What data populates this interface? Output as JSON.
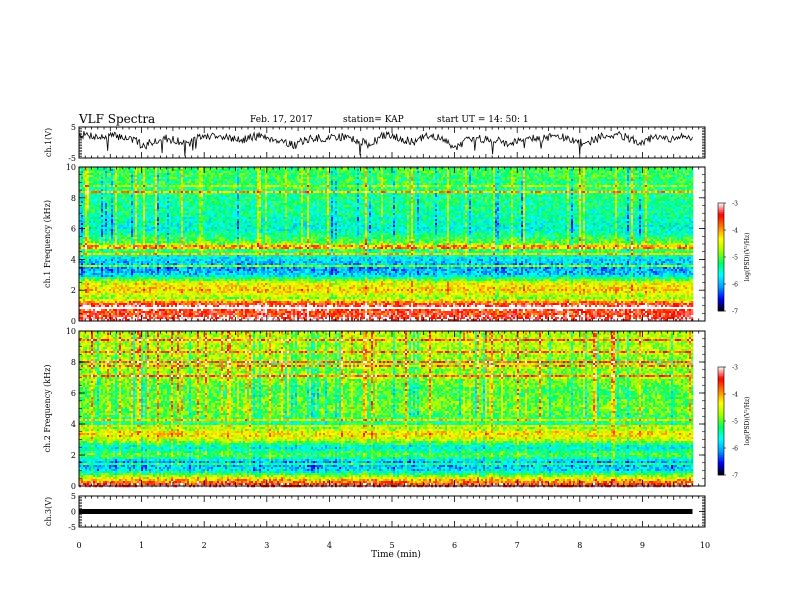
{
  "header": {
    "title": "VLF Spectra",
    "date": "Feb. 17, 2017",
    "station": "station= KAP",
    "start": "start UT = 14: 50: 1"
  },
  "colorbar": {
    "label": "log(PSD)(V²/Hz)",
    "ticks": [
      "-3",
      "-4",
      "-5",
      "-6",
      "-7"
    ],
    "range": [
      -7,
      -3
    ],
    "colors": [
      "#000000",
      "#0000ff",
      "#00a0ff",
      "#00ffff",
      "#00ff60",
      "#a0ff00",
      "#ffff00",
      "#ff8000",
      "#ff0000",
      "#ffffff"
    ]
  },
  "chart_data": [
    {
      "type": "line",
      "panel": "ch1-waveform",
      "ylabel": "ch.1(V)",
      "ylim": [
        -5,
        5
      ],
      "yticks": [
        "5",
        "-5"
      ],
      "xlim": [
        0,
        10
      ],
      "trace_window": [
        0,
        9.8
      ],
      "series": [
        {
          "values": [
            2.5,
            2.4,
            1.6,
            2.2,
            1.8,
            1.0,
            -1.2,
            0.6,
            1.4,
            0.8,
            -0.8,
            1.6,
            2.0,
            2.4,
            1.4,
            0.6,
            1.8,
            2.2,
            1.2,
            0.4,
            -1.0,
            0.8,
            1.5,
            0.9,
            2.0,
            1.6,
            0.6,
            -0.8,
            1.8,
            2.6,
            1.2,
            0.0,
            1.6,
            2.2,
            0.4,
            -1.4,
            0.6,
            1.0,
            1.4,
            0.8,
            -0.6,
            1.2,
            1.8,
            1.0,
            2.2,
            1.6,
            0.4,
            -0.4,
            1.2,
            2.4,
            2.8,
            1.4,
            0.2,
            1.0,
            1.8,
            0.6,
            2.0,
            1.4
          ]
        }
      ]
    },
    {
      "type": "heatmap",
      "panel": "ch1-spectrogram",
      "ylabel": "ch.1 Frequency (kHz)",
      "ylim": [
        0,
        10
      ],
      "yticks": [
        "0",
        "2",
        "4",
        "6",
        "8",
        "10"
      ],
      "xlim": [
        0,
        10
      ],
      "data_window": [
        0,
        9.8
      ],
      "freq_profile": [
        [
          0.0,
          -3.0
        ],
        [
          0.5,
          -3.6
        ],
        [
          1.0,
          -3.2
        ],
        [
          1.5,
          -4.8
        ],
        [
          2.0,
          -4.2
        ],
        [
          2.5,
          -4.5
        ],
        [
          3.0,
          -5.9
        ],
        [
          3.5,
          -6.1
        ],
        [
          4.0,
          -5.8
        ],
        [
          4.5,
          -5.2
        ],
        [
          5.0,
          -4.8
        ],
        [
          5.5,
          -5.3
        ],
        [
          6.0,
          -5.6
        ],
        [
          7.0,
          -5.4
        ],
        [
          8.0,
          -5.3
        ],
        [
          9.0,
          -5.2
        ],
        [
          10.0,
          -5.1
        ]
      ]
    },
    {
      "type": "heatmap",
      "panel": "ch2-spectrogram",
      "ylabel": "ch.2 Frequency (kHz)",
      "ylim": [
        0,
        10
      ],
      "yticks": [
        "0",
        "2",
        "4",
        "6",
        "8",
        "10"
      ],
      "xlim": [
        0,
        10
      ],
      "data_window": [
        0,
        9.8
      ],
      "freq_profile": [
        [
          0.0,
          -3.2
        ],
        [
          0.5,
          -4.4
        ],
        [
          1.0,
          -5.8
        ],
        [
          1.5,
          -6.1
        ],
        [
          2.0,
          -5.0
        ],
        [
          2.5,
          -5.7
        ],
        [
          3.0,
          -4.6
        ],
        [
          3.4,
          -4.2
        ],
        [
          4.0,
          -5.3
        ],
        [
          4.5,
          -5.1
        ],
        [
          5.0,
          -4.9
        ],
        [
          6.0,
          -5.1
        ],
        [
          7.0,
          -4.8
        ],
        [
          8.0,
          -4.8
        ],
        [
          9.0,
          -4.7
        ],
        [
          10.0,
          -4.6
        ]
      ]
    },
    {
      "type": "line",
      "panel": "ch3-waveform",
      "ylabel": "ch.3(V)",
      "ylim": [
        -5,
        5
      ],
      "yticks": [
        "5",
        "0",
        "-5"
      ],
      "xlim": [
        0,
        10
      ],
      "xlabel": "Time (min)",
      "xticks": [
        "0",
        "1",
        "2",
        "3",
        "4",
        "5",
        "6",
        "7",
        "8",
        "9",
        "10"
      ],
      "series": [
        {
          "x": [
            0,
            9.8
          ],
          "values": [
            0,
            0
          ]
        }
      ]
    }
  ]
}
